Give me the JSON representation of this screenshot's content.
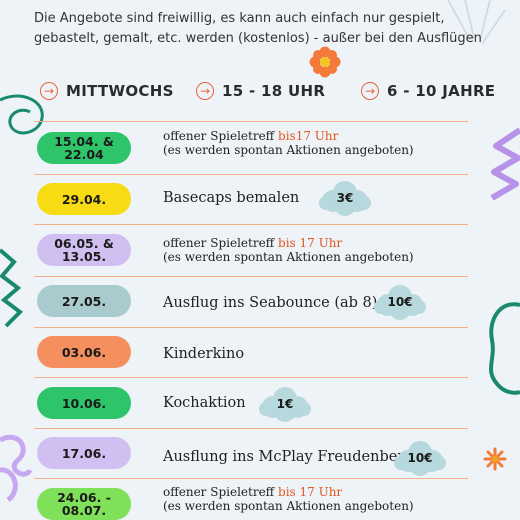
{
  "intro": "Die Angebote sind freiwillig, es kann auch einfach nur gespielt, gebastelt, gemalt, etc. werden (kostenlos) - außer bei den Ausflügen",
  "info": {
    "day": "MITTWOCHS",
    "time": "15 - 18 UHR",
    "age": "6 - 10 JAHRE"
  },
  "schedule": [
    {
      "date": "15.04. &\n22.04",
      "pill_color": "#2ec46a",
      "line1": "offener Spieletreff ",
      "hl": "bis17 Uhr",
      "line2": " (es werden spontan Aktionen angeboten)"
    },
    {
      "date": "29.04.",
      "pill_color": "#f7dc14",
      "activity": "Basecaps bemalen",
      "price": "3€"
    },
    {
      "date": "06.05. &\n13.05.",
      "pill_color": "#d2bff2",
      "line1": "offener Spieletreff ",
      "hl": "bis 17 Uhr",
      "line2": "(es werden spontan Aktionen angeboten)"
    },
    {
      "date": "27.05.",
      "pill_color": "#a9cbce",
      "activity": "Ausflug ins Seabounce (ab 8)",
      "price": "10€"
    },
    {
      "date": "03.06.",
      "pill_color": "#f58f5d",
      "activity": "Kinderkino"
    },
    {
      "date": "10.06.",
      "pill_color": "#2ec46a",
      "activity": "Kochaktion",
      "price": "1€"
    },
    {
      "date": "17.06.",
      "pill_color": "#d2bff2",
      "activity": "Ausflung ins McPlay Freudenberg",
      "price": "10€"
    },
    {
      "date": "24.06. -\n08.07.",
      "pill_color": "#7fe05a",
      "line1": "offener Spieletreff ",
      "hl": "bis 17 Uhr",
      "line2": "(es werden spontan Aktionen angeboten)"
    }
  ],
  "colors": {
    "accent": "#e2561f",
    "cloud": "#b7d8dc",
    "divider": "#f2b08a",
    "deco_green": "#1a8a6e",
    "deco_purple": "#b693e8"
  },
  "icons": [
    "flower-icon",
    "arrow-right-icon",
    "cloud-badge"
  ]
}
